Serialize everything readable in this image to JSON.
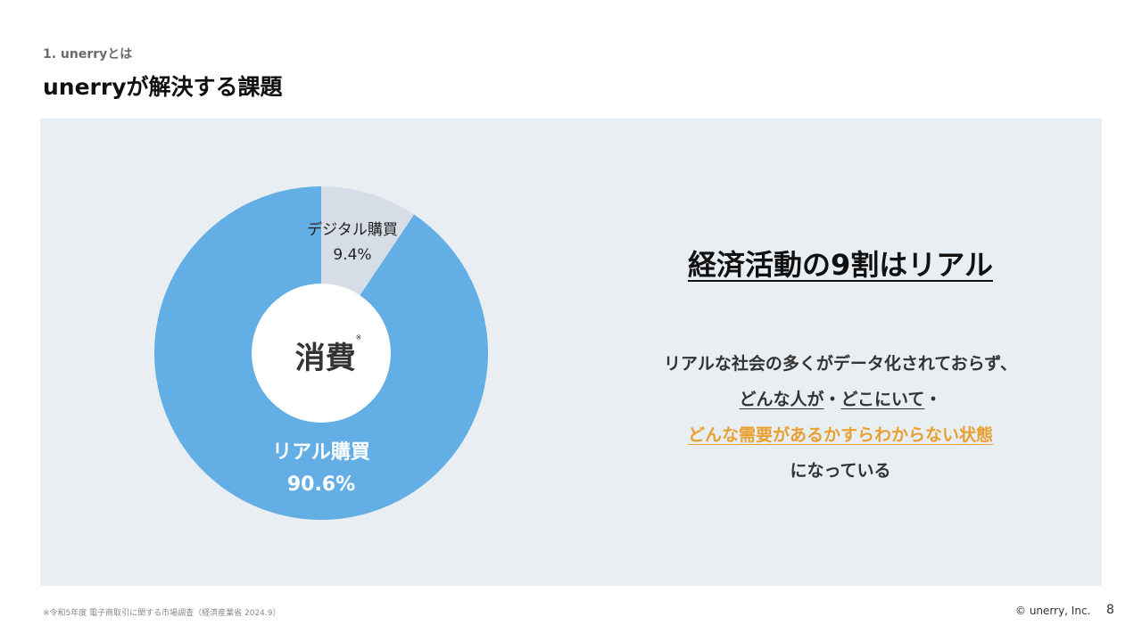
{
  "header": {
    "section": "1. unerryとは",
    "title": "unerryが解決する課題"
  },
  "chart_data": {
    "type": "pie",
    "donut": true,
    "center_label": "消費",
    "center_mark": "※",
    "slices": [
      {
        "label": "デジタル購買",
        "value": 9.4,
        "display": "9.4%",
        "color": "#d7dde6"
      },
      {
        "label": "リアル購買",
        "value": 90.6,
        "display": "90.6%",
        "color": "#62aee5"
      }
    ]
  },
  "message": {
    "headline": "経済活動の9割はリアル",
    "line1": "リアルな社会の多くがデータ化されておらず、",
    "line2_a": "どんな人が",
    "line2_sep1": "・",
    "line2_b": "どこにいて",
    "line2_sep2": "・",
    "line3": "どんな需要があるかすらわからない状態",
    "line4": "になっている"
  },
  "footer": {
    "note": "※令和5年度 電子商取引に関する市場調査（経済産業省 2024.9）",
    "copyright": "© unerry, Inc.",
    "page": "8"
  }
}
